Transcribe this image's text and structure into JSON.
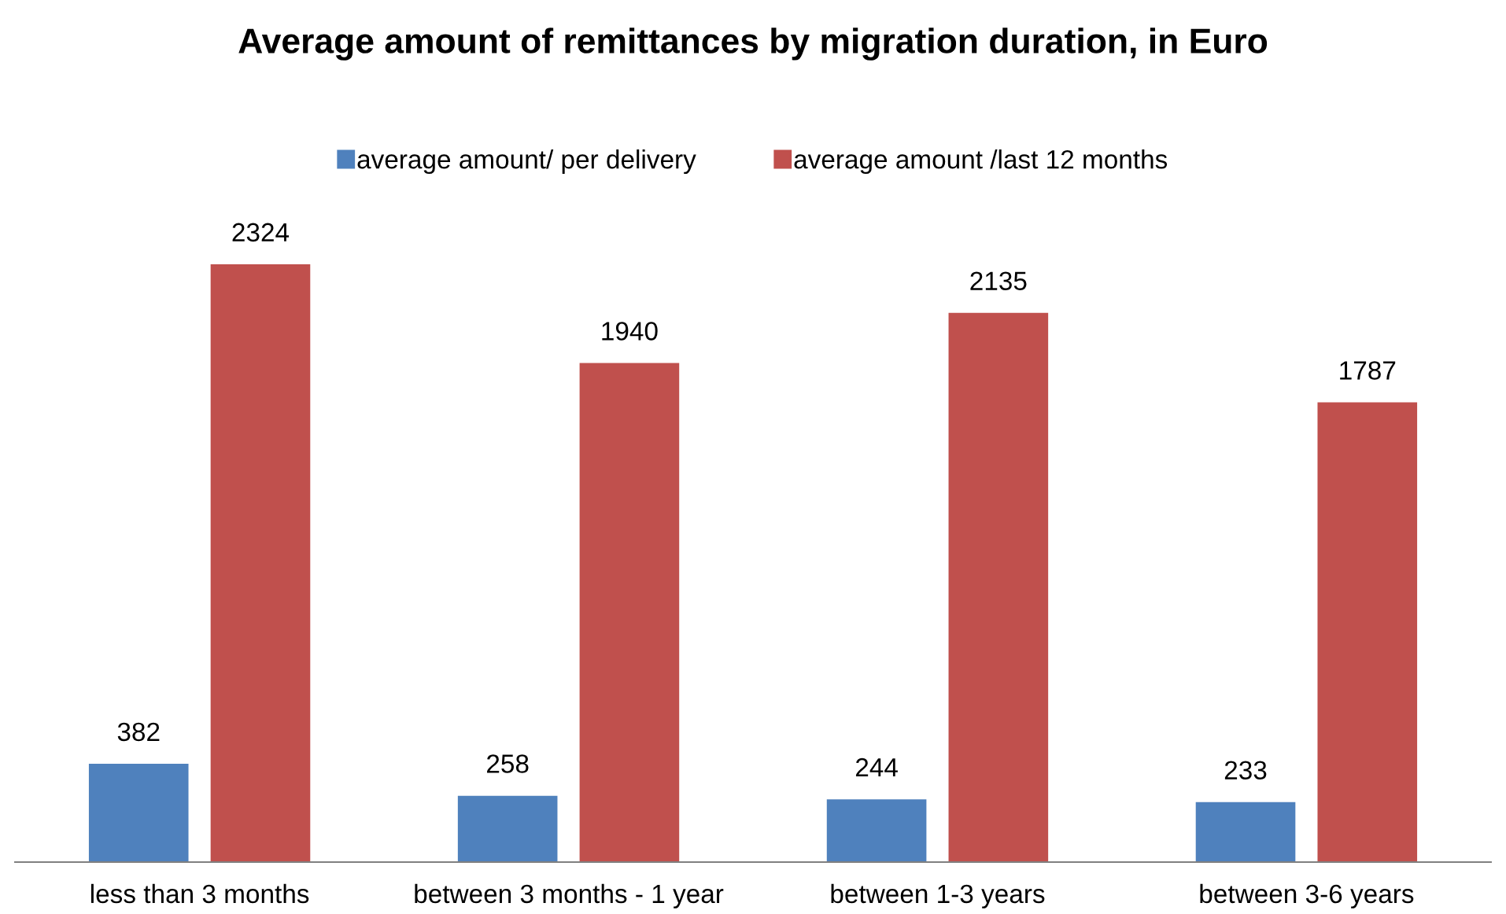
{
  "chart_data": {
    "type": "bar",
    "title": "Average amount of remittances by migration duration, in Euro",
    "categories": [
      "less than 3 months",
      "between 3 months - 1 year",
      "between 1-3 years",
      "between 3-6 years"
    ],
    "series": [
      {
        "name": "average amount/ per delivery",
        "color": "#4f81bd",
        "values": [
          382,
          258,
          244,
          233
        ]
      },
      {
        "name": "average amount /last 12 months",
        "color": "#c0504d",
        "values": [
          2324,
          1940,
          2135,
          1787
        ]
      }
    ],
    "data_labels": true,
    "legend": "top",
    "grid": false
  }
}
